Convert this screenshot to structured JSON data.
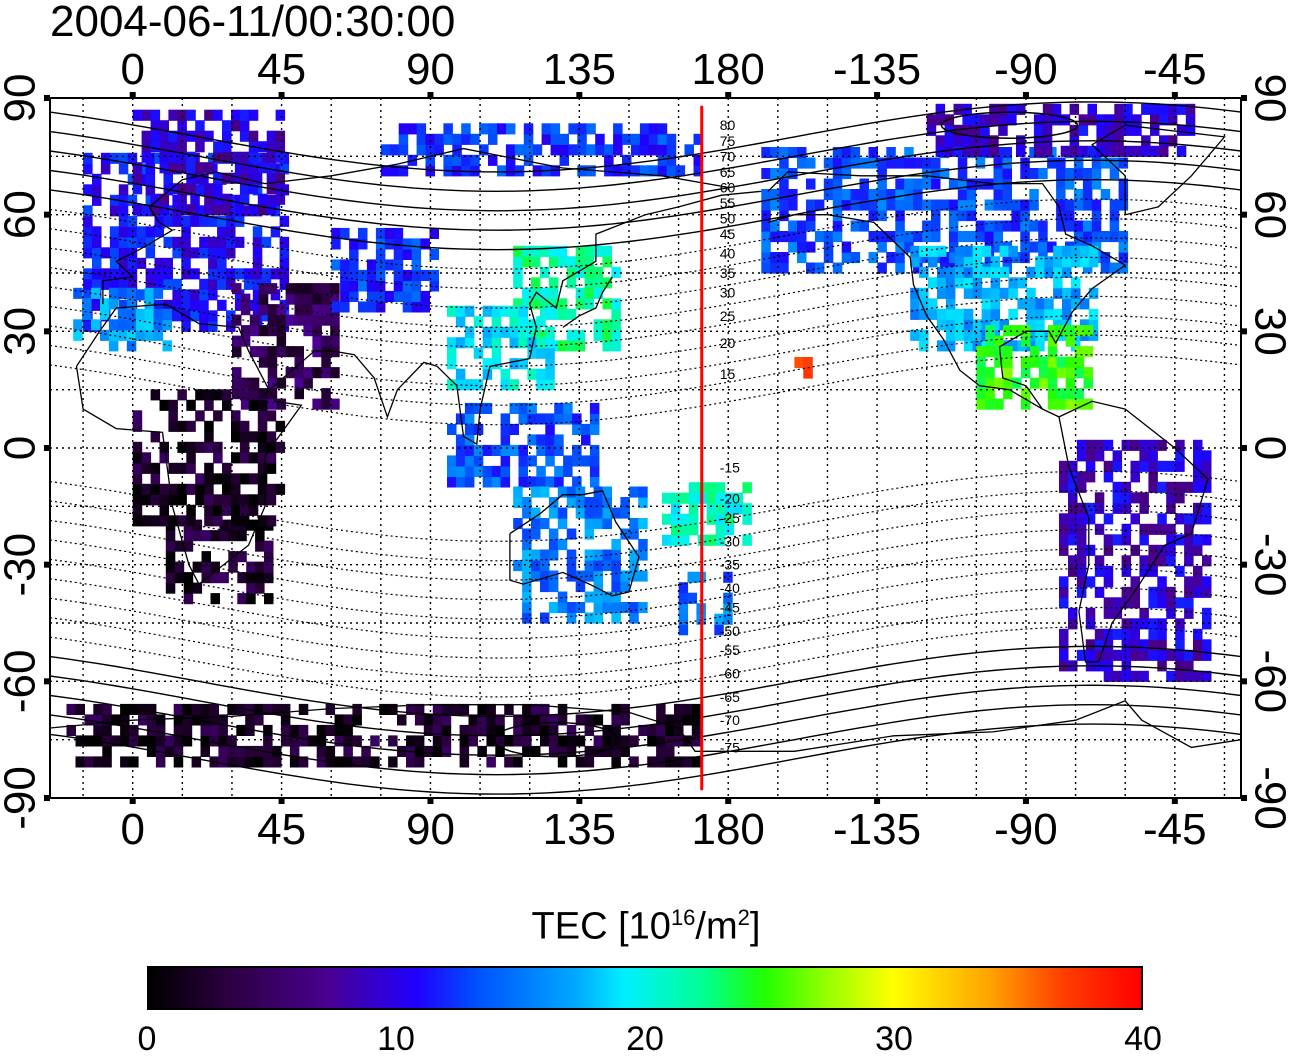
{
  "timestamp": "2004-06-11/00:30:00",
  "map": {
    "projection": "equirectangular",
    "lon_range": [
      -25,
      335
    ],
    "lat_range": [
      -90,
      90
    ],
    "top_lon_labels": [
      "0",
      "45",
      "90",
      "135",
      "180",
      "-135",
      "-90",
      "-45"
    ],
    "bottom_lon_labels": [
      "0",
      "45",
      "90",
      "135",
      "180",
      "-135",
      "-90",
      "-45"
    ],
    "left_lat_labels": [
      "90",
      "60",
      "30",
      "0",
      "-30",
      "-60",
      "-90"
    ],
    "right_lat_labels": [
      "90",
      "60",
      "30",
      "0",
      "-30",
      "-60",
      "-90"
    ],
    "grid": "dotted every 15 degrees",
    "terminator_line": {
      "color": "#ff0000",
      "lon": 172
    },
    "contour_labels": [
      {
        "text": "80",
        "lat": 83
      },
      {
        "text": "75",
        "lat": 79
      },
      {
        "text": "70",
        "lat": 75
      },
      {
        "text": "65",
        "lat": 71
      },
      {
        "text": "60",
        "lat": 67
      },
      {
        "text": "55",
        "lat": 63
      },
      {
        "text": "50",
        "lat": 59
      },
      {
        "text": "45",
        "lat": 55
      },
      {
        "text": "40",
        "lat": 50
      },
      {
        "text": "35",
        "lat": 45
      },
      {
        "text": "30",
        "lat": 40
      },
      {
        "text": "25",
        "lat": 34
      },
      {
        "text": "20",
        "lat": 27
      },
      {
        "text": "15",
        "lat": 19
      },
      {
        "text": "-15",
        "lat": -5
      },
      {
        "text": "-20",
        "lat": -13
      },
      {
        "text": "-25",
        "lat": -18
      },
      {
        "text": "-30",
        "lat": -24
      },
      {
        "text": "-35",
        "lat": -30
      },
      {
        "text": "-40",
        "lat": -36
      },
      {
        "text": "-45",
        "lat": -41
      },
      {
        "text": "-50",
        "lat": -47
      },
      {
        "text": "-55",
        "lat": -52
      },
      {
        "text": "-60",
        "lat": -58
      },
      {
        "text": "-65",
        "lat": -64
      },
      {
        "text": "-70",
        "lat": -70
      },
      {
        "text": "-75",
        "lat": -77
      }
    ]
  },
  "colorbar": {
    "title_main": "TEC  [10",
    "title_exp1": "16",
    "title_mid": "/m",
    "title_exp2": "2",
    "title_end": "]",
    "min": 0,
    "max": 40,
    "tick_labels": [
      "0",
      "10",
      "20",
      "30",
      "40"
    ],
    "colormap_stops": [
      "#000000",
      "#2c0040",
      "#4a0090",
      "#2000ff",
      "#0050ff",
      "#00a8ff",
      "#00f0ff",
      "#00ff90",
      "#20ff00",
      "#90ff00",
      "#ffff00",
      "#ffa000",
      "#ff4000",
      "#ff0000"
    ]
  },
  "tec_regions": [
    {
      "name": "europe",
      "lon": [
        -15,
        45
      ],
      "lat": [
        30,
        75
      ],
      "tec": 10
    },
    {
      "name": "scandinavia",
      "lon": [
        0,
        45
      ],
      "lat": [
        60,
        85
      ],
      "tec": 8
    },
    {
      "name": "north-africa",
      "lon": [
        -18,
        10
      ],
      "lat": [
        25,
        40
      ],
      "tec": 15
    },
    {
      "name": "middle-east",
      "lon": [
        30,
        60
      ],
      "lat": [
        10,
        40
      ],
      "tec": 4
    },
    {
      "name": "central-asia",
      "lon": [
        60,
        90
      ],
      "lat": [
        35,
        55
      ],
      "tec": 11
    },
    {
      "name": "siberia-north",
      "lon": [
        75,
        170
      ],
      "lat": [
        70,
        82
      ],
      "tec": 11
    },
    {
      "name": "japan-china",
      "lon": [
        115,
        145
      ],
      "lat": [
        25,
        50
      ],
      "tec": 21
    },
    {
      "name": "south-china",
      "lon": [
        95,
        125
      ],
      "lat": [
        15,
        35
      ],
      "tec": 18
    },
    {
      "name": "indonesia",
      "lon": [
        95,
        140
      ],
      "lat": [
        -10,
        10
      ],
      "tec": 12
    },
    {
      "name": "australia",
      "lon": [
        115,
        155
      ],
      "lat": [
        -45,
        -10
      ],
      "tec": 14
    },
    {
      "name": "new-zealand",
      "lon": [
        165,
        180
      ],
      "lat": [
        -48,
        -34
      ],
      "tec": 13
    },
    {
      "name": "pacific-south",
      "lon": [
        160,
        185
      ],
      "lat": [
        -25,
        -10
      ],
      "tec": 20
    },
    {
      "name": "hawaii",
      "lon": [
        200,
        205
      ],
      "lat": [
        18,
        23
      ],
      "tec": 38
    },
    {
      "name": "alaska-canada",
      "lon": [
        190,
        300
      ],
      "lat": [
        45,
        75
      ],
      "tec": 12
    },
    {
      "name": "usa",
      "lon": [
        235,
        290
      ],
      "lat": [
        25,
        50
      ],
      "tec": 16
    },
    {
      "name": "mexico",
      "lon": [
        255,
        290
      ],
      "lat": [
        10,
        30
      ],
      "tec": 25
    },
    {
      "name": "arctic-north-america",
      "lon": [
        240,
        320
      ],
      "lat": [
        75,
        88
      ],
      "tec": 8
    },
    {
      "name": "south-america",
      "lon": [
        280,
        325
      ],
      "lat": [
        -60,
        0
      ],
      "tec": 8
    },
    {
      "name": "antarctica",
      "lon": [
        -20,
        170
      ],
      "lat": [
        -82,
        -68
      ],
      "tec": 2
    },
    {
      "name": "south-africa",
      "lon": [
        10,
        40
      ],
      "lat": [
        -40,
        -20
      ],
      "tec": 2
    },
    {
      "name": "africa",
      "lon": [
        0,
        45
      ],
      "lat": [
        -20,
        15
      ],
      "tec": 2
    }
  ]
}
